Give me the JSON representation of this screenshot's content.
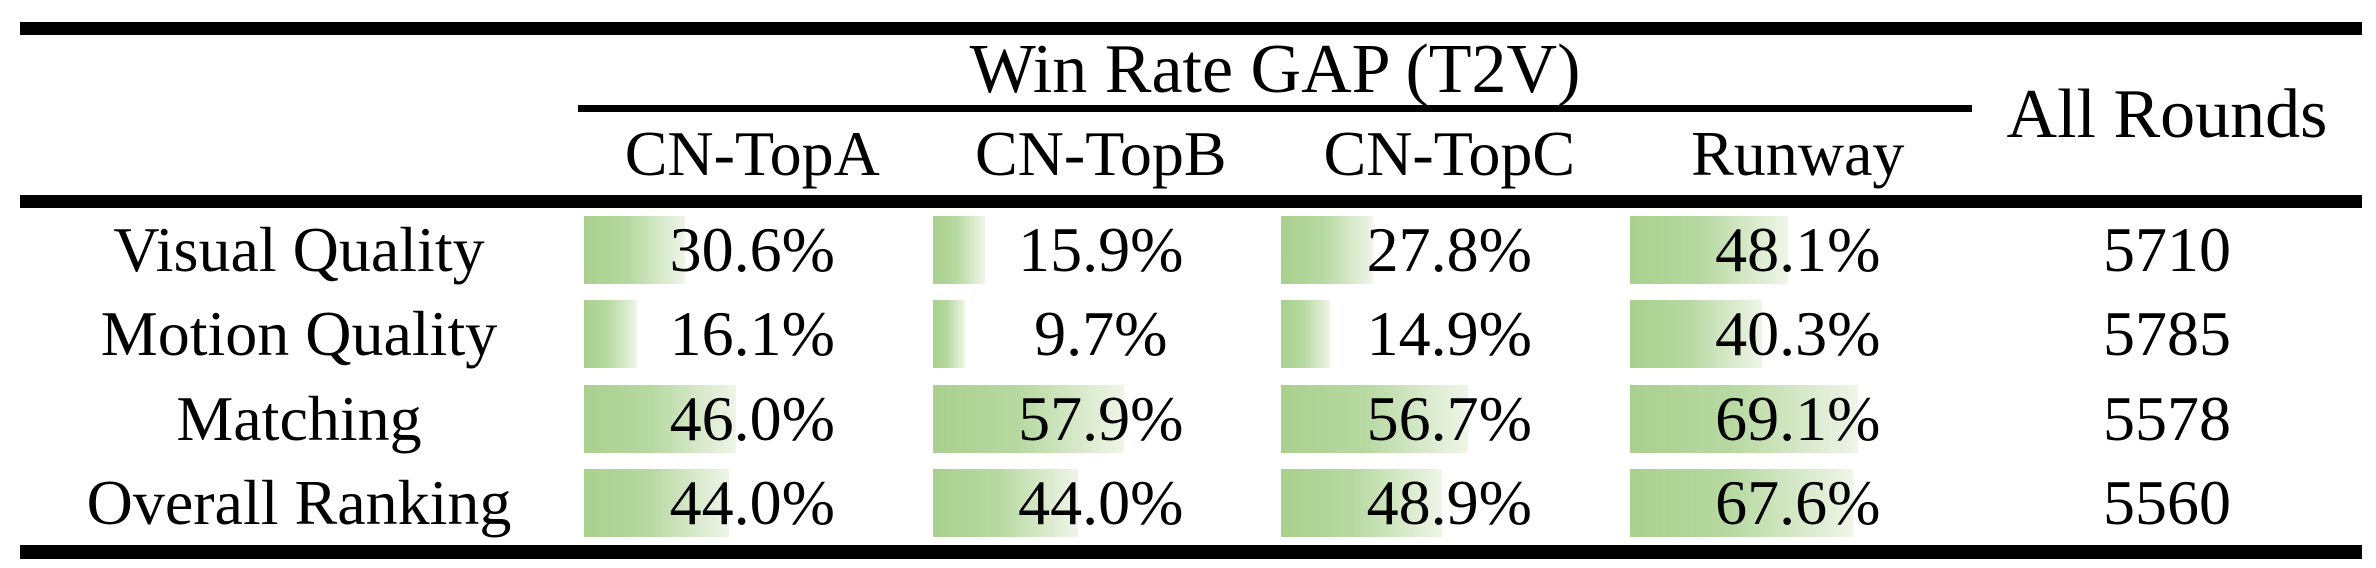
{
  "table": {
    "group_header": "Win Rate GAP (T2V)",
    "all_rounds_label": "All Rounds"
  },
  "chart_data": {
    "type": "table",
    "title": "Win Rate GAP (T2V)",
    "columns": [
      "CN-TopA",
      "CN-TopB",
      "CN-TopC",
      "Runway"
    ],
    "unit": "%",
    "rows": [
      {
        "label": "Visual Quality",
        "values": [
          30.6,
          15.9,
          27.8,
          48.1
        ],
        "all_rounds": 5710
      },
      {
        "label": "Motion Quality",
        "values": [
          16.1,
          9.7,
          14.9,
          40.3
        ],
        "all_rounds": 5785
      },
      {
        "label": "Matching",
        "values": [
          46.0,
          57.9,
          56.7,
          69.1
        ],
        "all_rounds": 5578
      },
      {
        "label": "Overall Ranking",
        "values": [
          44.0,
          44.0,
          48.9,
          67.6
        ],
        "all_rounds": 5560
      }
    ],
    "all_rounds_label": "All Rounds",
    "bar_color_start": "#a9d08e",
    "bar_color_end": "#eff5e8",
    "bar_full_scale_pct": 100
  }
}
